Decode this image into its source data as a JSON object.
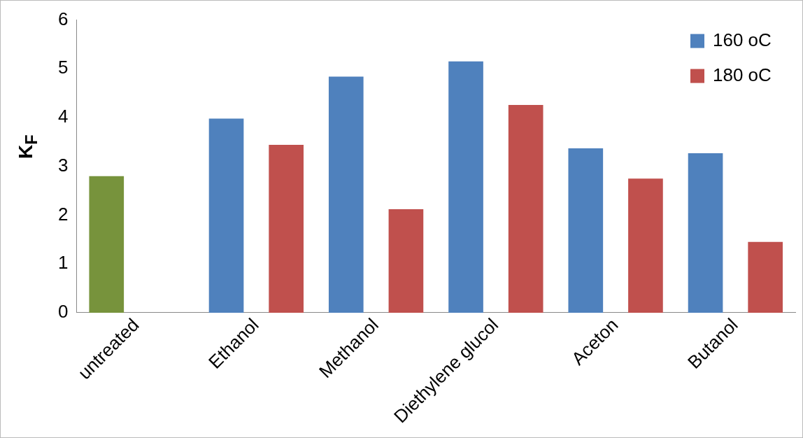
{
  "chart_data": {
    "type": "bar",
    "ylabel": "K$_{F}$",
    "categories": [
      "untreated",
      "Ethanol",
      "Methanol",
      "Diethylene glucol",
      "Aceton",
      "Butanol"
    ],
    "series": [
      {
        "name": "160 oC",
        "color": "#4f81bd",
        "colors": [
          "#77933c",
          "#4f81bd",
          "#4f81bd",
          "#4f81bd",
          "#4f81bd",
          "#4f81bd"
        ],
        "values": [
          2.8,
          3.98,
          4.84,
          5.15,
          3.37,
          3.27
        ]
      },
      {
        "name": "180 oC",
        "color": "#c0504d",
        "values": [
          null,
          3.44,
          2.12,
          4.26,
          2.75,
          1.45
        ]
      }
    ],
    "ylim": [
      0,
      6
    ],
    "yticks": [
      0,
      1,
      2,
      3,
      4,
      5,
      6
    ],
    "grid": false,
    "legend": "top right"
  }
}
